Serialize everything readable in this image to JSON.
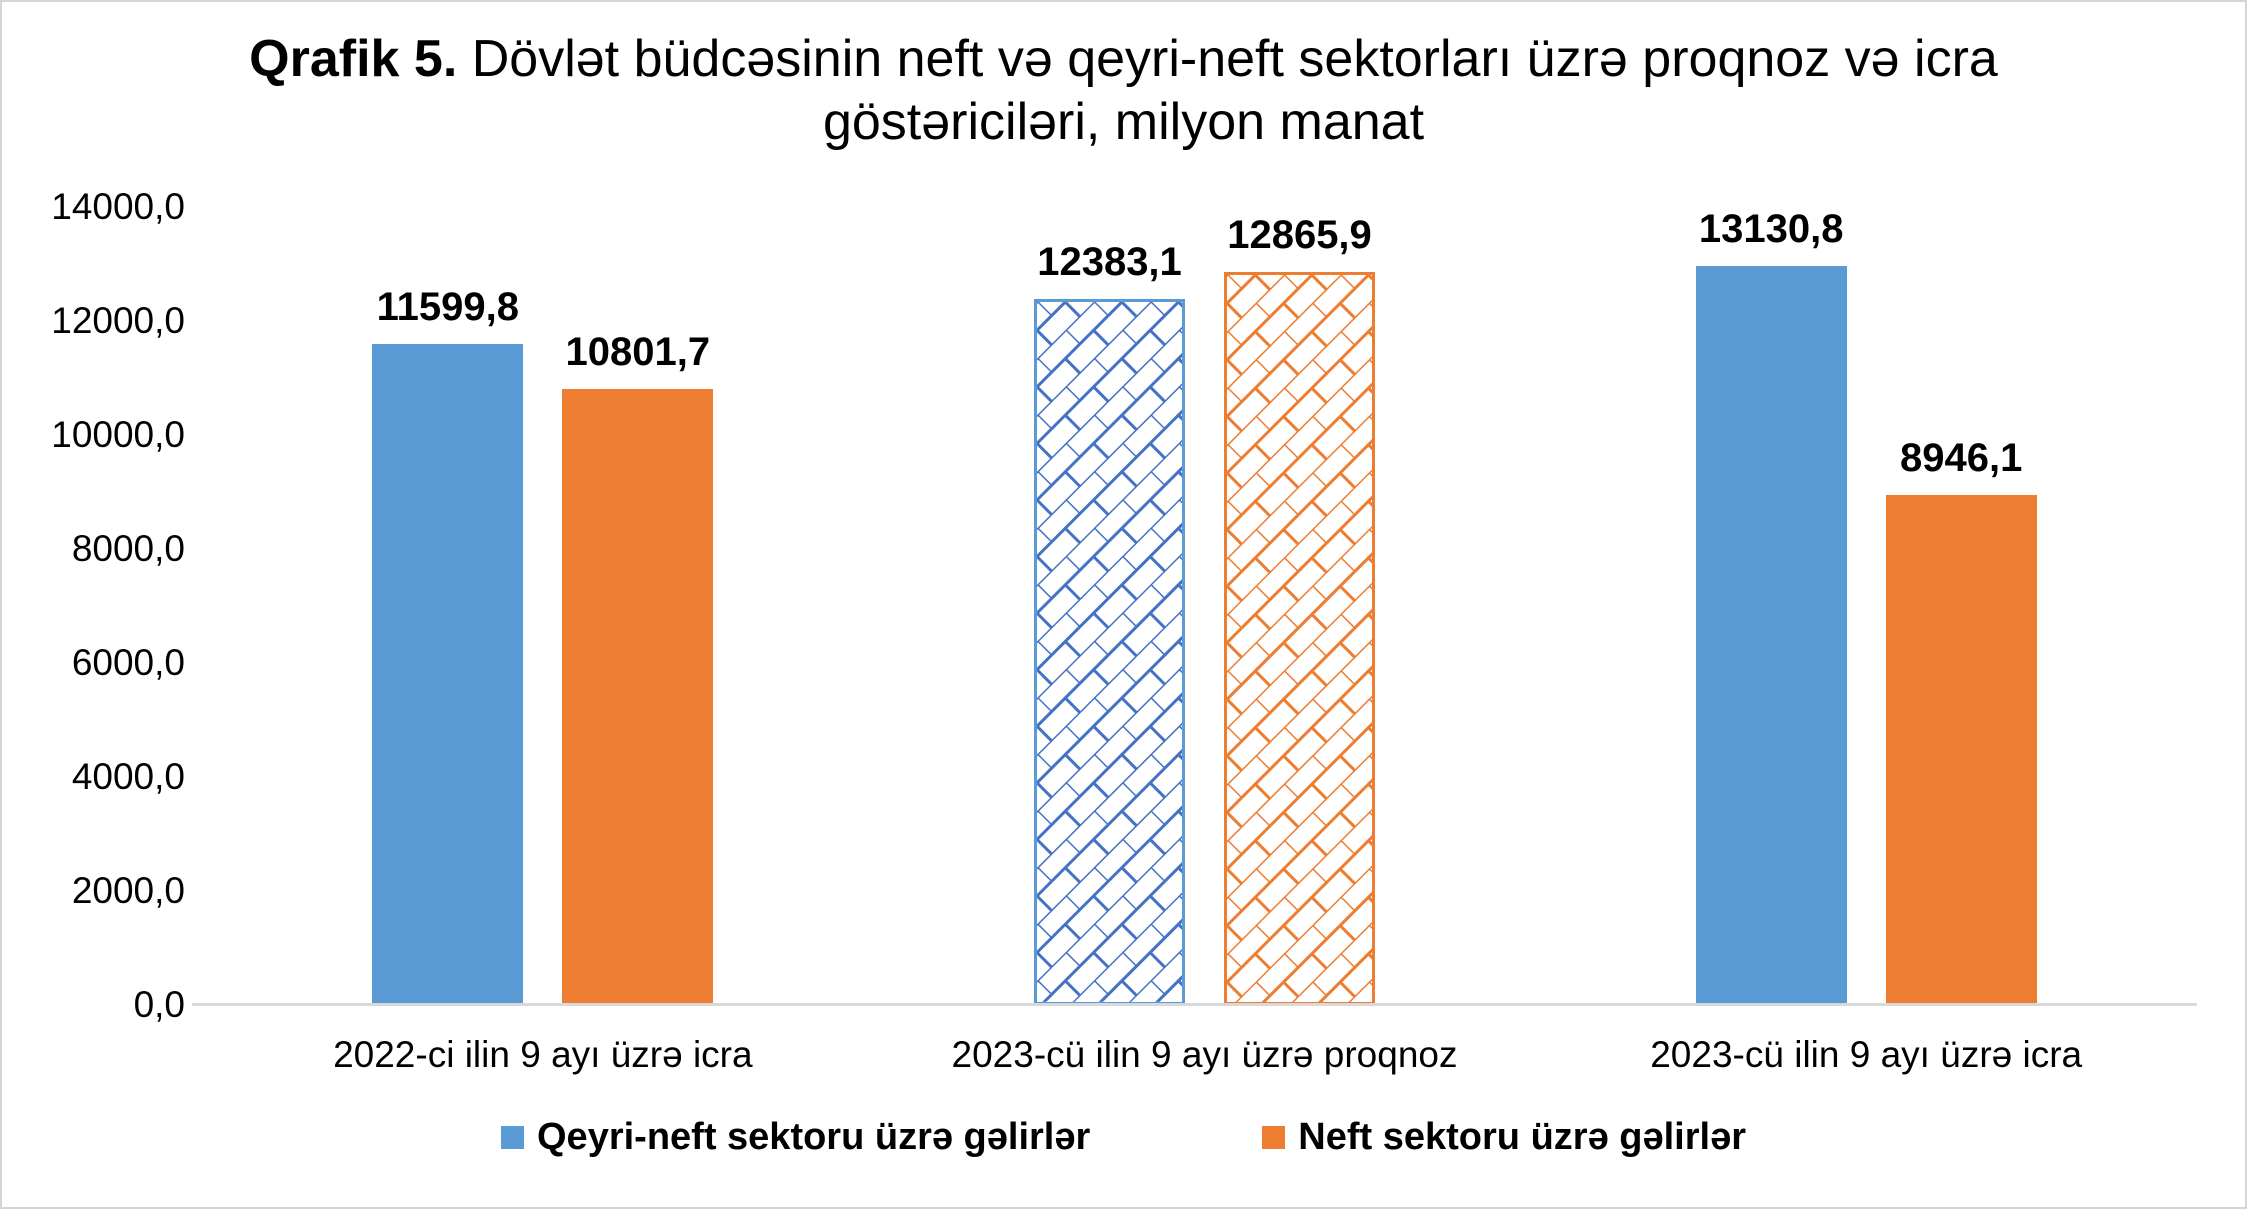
{
  "window": {
    "background": "#ffffff",
    "border_color": "#d5d5d5"
  },
  "chart_data": {
    "type": "bar",
    "title": {
      "prefix": "Qrafik 5.",
      "rest": " Dövlət büdcəsinin neft və qeyri-neft sektorları üzrə proqnoz və icra göstəriciləri, milyon manat"
    },
    "y_axis": {
      "min": 0,
      "max": 14000,
      "tick_step": 2000,
      "ticks": [
        "14000,0",
        "12000,0",
        "10000,0",
        "8000,0",
        "6000,0",
        "4000,0",
        "2000,0",
        "0,0"
      ]
    },
    "grid": false,
    "legend_position": "bottom",
    "axis_line_color": "#d9d9d9",
    "categories": [
      {
        "label": "2022-ci ilin 9 ayı üzrə icra",
        "fill_style": "solid"
      },
      {
        "label": "2023-cü ilin 9 ayı üzrə proqnoz",
        "fill_style": "diagonal-brick-pattern"
      },
      {
        "label": "2023-cü ilin 9 ayı üzrə icra",
        "fill_style": "solid"
      }
    ],
    "series": [
      {
        "name": "Qeyri-neft sektoru üzrə gəlirlər",
        "color": "#5B9BD5",
        "pattern_stroke": "#4472C4",
        "values": [
          11599.8,
          12383.1,
          13130.8
        ],
        "labels": [
          "11599,8",
          "12383,1",
          "13130,8"
        ]
      },
      {
        "name": "Neft sektoru üzrə gəlirlər",
        "color": "#ED7D31",
        "pattern_stroke": "#ED7D31",
        "values": [
          10801.7,
          12865.9,
          8946.1
        ],
        "labels": [
          "10801,7",
          "12865,9",
          "8946,1"
        ]
      }
    ]
  }
}
